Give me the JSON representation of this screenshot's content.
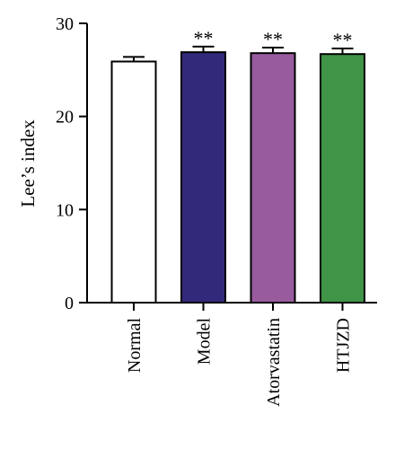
{
  "chart_data": {
    "type": "bar",
    "title": "",
    "xlabel": "",
    "ylabel": "Lee’s index",
    "ylim": [
      0,
      30
    ],
    "yticks": [
      0,
      10,
      20,
      30
    ],
    "categories": [
      "Normal",
      "Model",
      "Atorvastatin",
      "HTJZD"
    ],
    "values": [
      25.9,
      26.9,
      26.8,
      26.7
    ],
    "errors": [
      0.5,
      0.6,
      0.6,
      0.6
    ],
    "colors": [
      "#ffffff",
      "#33297a",
      "#985b9e",
      "#3f9447"
    ],
    "significance": [
      "",
      "**",
      "**",
      "**"
    ],
    "grid": false,
    "legend": "none"
  }
}
